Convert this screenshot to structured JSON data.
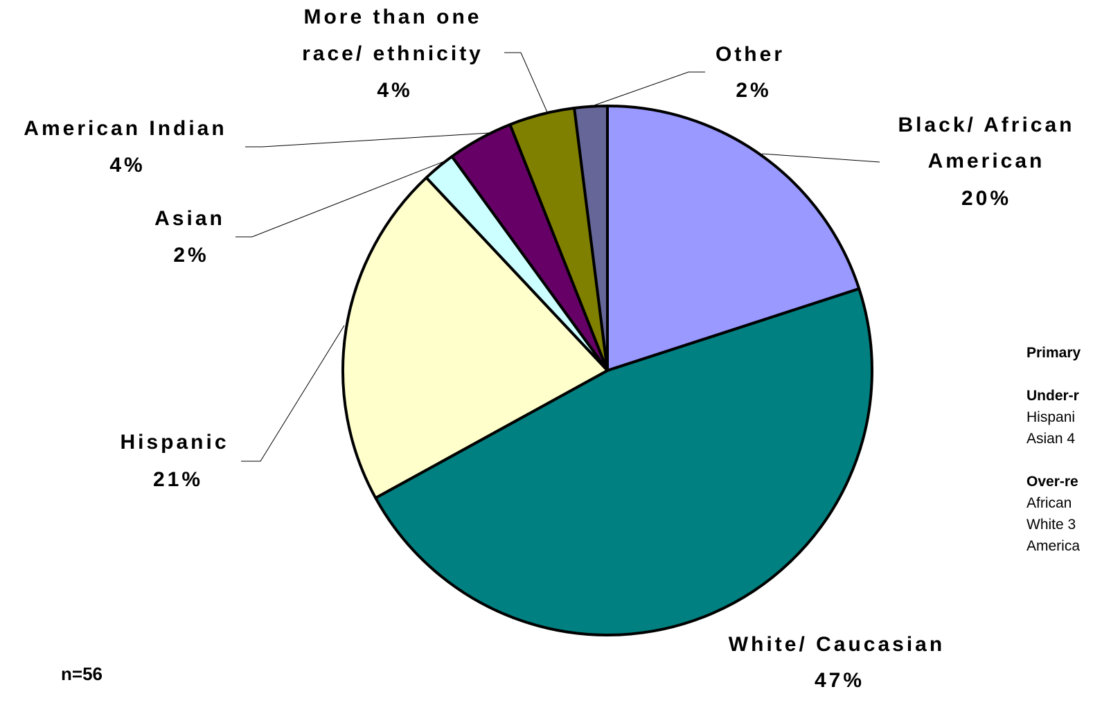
{
  "chart_data": {
    "type": "pie",
    "slices": [
      {
        "label": "Black/ African American",
        "value": 20,
        "value_label": "20%",
        "color": "#9999FF"
      },
      {
        "label": "White/ Caucasian",
        "value": 47,
        "value_label": "47%",
        "color": "#008080"
      },
      {
        "label": "Hispanic",
        "value": 21,
        "value_label": "21%",
        "color": "#FFFFCC"
      },
      {
        "label": "Asian",
        "value": 2,
        "value_label": "2%",
        "color": "#CCFFFF"
      },
      {
        "label": "American Indian",
        "value": 4,
        "value_label": "4%",
        "color": "#660066"
      },
      {
        "label": "More than one race/ ethnicity",
        "value": 4,
        "value_label": "4%",
        "color": "#808000"
      },
      {
        "label": "Other",
        "value": 2,
        "value_label": "2%",
        "color": "#666699"
      }
    ],
    "sample_note": "n=56"
  },
  "side_note": {
    "heading": "Primary",
    "under_heading": "Under-r",
    "under_lines": [
      "Hispani",
      "Asian 4"
    ],
    "over_heading": "Over-re",
    "over_lines": [
      "African",
      "White 3",
      "America"
    ]
  }
}
